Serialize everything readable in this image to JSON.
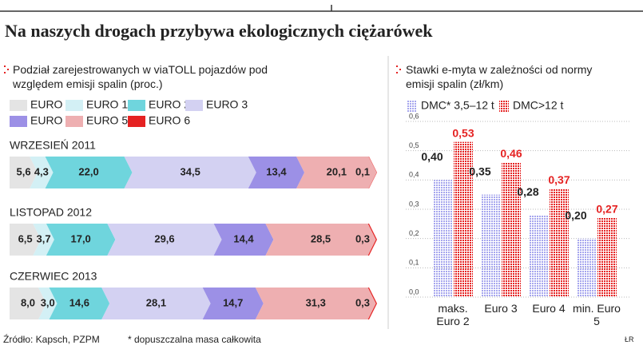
{
  "title": "Na naszych drogach przybywa ekologicznych ciężarówek",
  "source": "Źródło: Kapsch, PZPM",
  "footnote": "* dopuszczalna masa całkowita",
  "credit": "ŁR",
  "chart_data": [
    {
      "type": "stacked-hbar",
      "title": "Podział zarejestrowanych w viaTOLL pojazdów pod względem emisji spalin (proc.)",
      "categories": [
        "WRZESIEŃ 2011",
        "LISTOPAD 2012",
        "CZERWIEC 2013"
      ],
      "series": [
        {
          "name": "EURO 0",
          "color": "#e4e4e4",
          "values": [
            5.6,
            6.5,
            8.0
          ],
          "value_labels": [
            "5,6",
            "6,5",
            "8,0"
          ]
        },
        {
          "name": "EURO 1",
          "color": "#d3f0f5",
          "values": [
            4.3,
            3.7,
            3.0
          ],
          "value_labels": [
            "4,3",
            "3,7",
            "3,0"
          ]
        },
        {
          "name": "EURO 2",
          "color": "#6fd5dd",
          "values": [
            22.0,
            17.0,
            14.6
          ],
          "value_labels": [
            "22,0",
            "17,0",
            "14,6"
          ]
        },
        {
          "name": "EURO 3",
          "color": "#d3d1f2",
          "values": [
            34.5,
            29.6,
            28.1
          ],
          "value_labels": [
            "34,5",
            "29,6",
            "28,1"
          ]
        },
        {
          "name": "EURO 4",
          "color": "#9c90e6",
          "values": [
            13.4,
            14.4,
            14.7
          ],
          "value_labels": [
            "13,4",
            "14,4",
            "14,7"
          ]
        },
        {
          "name": "EURO 5",
          "color": "#eeafb1",
          "values": [
            20.1,
            28.5,
            31.3
          ],
          "value_labels": [
            "20,1",
            "28,5",
            "31,3"
          ]
        },
        {
          "name": "EURO 6",
          "color": "#e52222",
          "values": [
            0.1,
            0.3,
            0.3
          ],
          "value_labels": [
            "0,1",
            "0,3",
            "0,3"
          ]
        }
      ]
    },
    {
      "type": "bar",
      "title": "Stawki e-myta w zależności od normy emisji spalin (zł/km)",
      "categories": [
        "maks. Euro 2",
        "Euro 3",
        "Euro 4",
        "min. Euro 5"
      ],
      "series": [
        {
          "name": "DMC* 3,5–12 t",
          "color": "#a6a6ee",
          "values": [
            0.4,
            0.35,
            0.28,
            0.2
          ],
          "value_labels": [
            "0,40",
            "0,35",
            "0,28",
            "0,20"
          ]
        },
        {
          "name": "DMC>12 t",
          "color": "#e52222",
          "values": [
            0.53,
            0.46,
            0.37,
            0.27
          ],
          "value_labels": [
            "0,53",
            "0,46",
            "0,37",
            "0,27"
          ]
        }
      ],
      "ylim": [
        0,
        0.6
      ],
      "yticks": [
        {
          "value": 0,
          "label": "0,0"
        },
        {
          "value": 0.1,
          "label": "0,1"
        },
        {
          "value": 0.2,
          "label": "0,2"
        },
        {
          "value": 0.3,
          "label": "0,3"
        },
        {
          "value": 0.4,
          "label": "0,4"
        },
        {
          "value": 0.5,
          "label": "0,5"
        },
        {
          "value": 0.6,
          "label": "0,6"
        }
      ],
      "grid": true
    }
  ]
}
